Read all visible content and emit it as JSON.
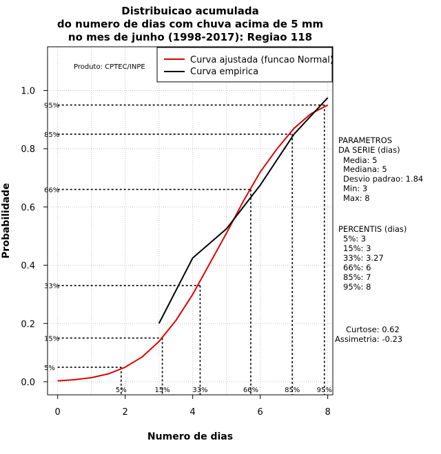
{
  "chart_data": {
    "type": "line",
    "title": [
      "Distribuicao acumulada",
      "do numero de dias com chuva acima de 5 mm",
      "no mes de junho (1998-2017): Regiao 118"
    ],
    "xlabel": "Numero de dias",
    "ylabel": "Probabilidade",
    "xlim": [
      -0.3,
      8.15
    ],
    "ylim": [
      -0.045,
      1.15
    ],
    "x_ticks": [
      0,
      2,
      4,
      6,
      8
    ],
    "y_ticks": [
      0.0,
      0.2,
      0.4,
      0.6,
      0.8,
      1.0
    ],
    "x_tick_labels": [
      "0",
      "2",
      "4",
      "6",
      "8"
    ],
    "y_tick_labels": [
      "0.0",
      "0.2",
      "0.4",
      "0.6",
      "0.8",
      "1.0"
    ],
    "grid": true,
    "legend_position": "top-right",
    "series": [
      {
        "name": "Curva ajustada (funcao Normal)",
        "color": "#dd0000",
        "x": [
          0,
          0.5,
          1,
          1.5,
          2,
          2.5,
          3,
          3.5,
          4,
          4.5,
          5,
          5.5,
          6,
          6.5,
          7,
          7.5,
          8
        ],
        "y": [
          0.003,
          0.007,
          0.014,
          0.027,
          0.05,
          0.085,
          0.138,
          0.21,
          0.3,
          0.405,
          0.51,
          0.62,
          0.72,
          0.8,
          0.87,
          0.92,
          0.95
        ]
      },
      {
        "name": "Curva empirica",
        "color": "#000000",
        "x": [
          3,
          4,
          5,
          6,
          7,
          8
        ],
        "y": [
          0.2,
          0.425,
          0.525,
          0.675,
          0.85,
          0.975
        ]
      }
    ],
    "percentile_lines": [
      {
        "label": "5%",
        "x": 1.88,
        "y": 0.05
      },
      {
        "label": "15%",
        "x": 3.1,
        "y": 0.15
      },
      {
        "label": "33%",
        "x": 4.22,
        "y": 0.33
      },
      {
        "label": "66%",
        "x": 5.72,
        "y": 0.66
      },
      {
        "label": "85%",
        "x": 6.95,
        "y": 0.85
      },
      {
        "label": "95%",
        "x": 7.9,
        "y": 0.95
      }
    ],
    "annotation": "Produto: CPTEC/INPE",
    "parametros": {
      "heading": [
        "PARAMETROS",
        "DA SERIE (dias)"
      ],
      "lines": [
        "Media: 5",
        "Mediana: 5",
        "Desvio padrao: 1.84",
        "Min: 3",
        "Max: 8"
      ]
    },
    "percentis": {
      "heading": "PERCENTIS (dias)",
      "lines": [
        "5%: 3",
        "15%: 3",
        "33%: 3.27",
        "66%: 6",
        "85%: 7",
        "95%: 8"
      ]
    },
    "curtose": "Curtose: 0.62",
    "assimetria": "Assimetria: -0.23"
  }
}
